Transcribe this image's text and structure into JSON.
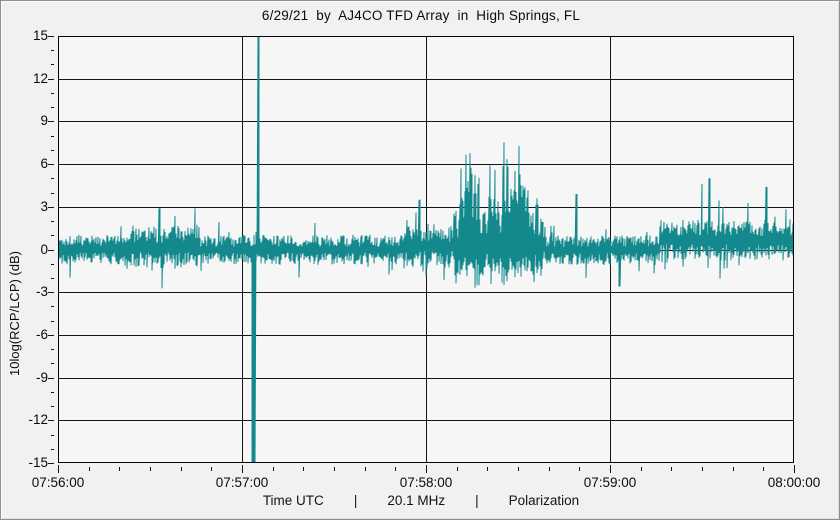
{
  "title": "6/29/21  by  AJ4CO TFD Array  in  High Springs, FL",
  "footer": {
    "time_label": "Time UTC",
    "separator": "|",
    "frequency_label": "20.1 MHz",
    "mode_label": "Polarization"
  },
  "y_axis": {
    "title": "10log(RCP/LCP) (dB)",
    "min": -15,
    "max": 15,
    "major_step": 3,
    "minor_step": 1,
    "tick_labels": [
      "15",
      "12",
      "9",
      "6",
      "3",
      "0",
      "-3",
      "-6",
      "-9",
      "-12",
      "-15"
    ]
  },
  "x_axis": {
    "tick_labels": [
      "07:56:00",
      "07:57:00",
      "07:58:00",
      "07:59:00",
      "08:00:00"
    ],
    "duration_sec": 240,
    "major_step_sec": 60,
    "minor_step_sec": 10
  },
  "colors": {
    "window_bg": "#f1f1f2",
    "plot_bg": "#f6f6f7",
    "grid": "#151515",
    "border": "#050505",
    "trace": "#13898d",
    "text": "#0b0b0b"
  },
  "chart_data": {
    "type": "line",
    "title": "6/29/21 by AJ4CO TFD Array in High Springs, FL",
    "xlabel": "Time UTC",
    "ylabel": "10log(RCP/LCP) (dB)",
    "frequency": "20.1 MHz",
    "quantity": "Polarization",
    "x_range": [
      "07:56:00",
      "08:00:00"
    ],
    "ylim": [
      -15,
      15
    ],
    "grid": true,
    "legend": false,
    "noise_seed": 1337,
    "segment_format": "[t0_sec, t1_sec, mean_dB, amplitude_dB, spike_probability] (t measured in seconds after 07:56:00)",
    "baseline_segments": [
      [
        0,
        20,
        0.0,
        1.05,
        0.05
      ],
      [
        20,
        46,
        0.15,
        1.5,
        0.08
      ],
      [
        46,
        112,
        0.0,
        1.05,
        0.05
      ],
      [
        112,
        128,
        0.2,
        1.6,
        0.1
      ],
      [
        128,
        159,
        0.3,
        1.4,
        0.1
      ],
      [
        159,
        196,
        -0.05,
        1.05,
        0.06
      ],
      [
        196,
        240,
        0.65,
        1.45,
        0.09
      ]
    ],
    "burst_peak_format": "[t_sec, peak_dB, gaussian_width_sec] — solar radio burst ~07:58:09-07:58:38",
    "burst_peaks": [
      [
        129.5,
        3.6,
        0.5
      ],
      [
        131.5,
        5.8,
        0.6
      ],
      [
        133.2,
        7.3,
        0.55
      ],
      [
        134.6,
        7.5,
        0.6
      ],
      [
        135.9,
        6.6,
        0.5
      ],
      [
        137.2,
        5.2,
        0.5
      ],
      [
        139.0,
        3.4,
        0.7
      ],
      [
        141.0,
        6.2,
        0.55
      ],
      [
        142.4,
        6.5,
        0.5
      ],
      [
        143.6,
        4.8,
        0.45
      ],
      [
        145.3,
        9.4,
        0.38
      ],
      [
        146.6,
        6.9,
        0.5
      ],
      [
        147.9,
        6.4,
        0.5
      ],
      [
        149.2,
        7.7,
        0.5
      ],
      [
        150.5,
        8.2,
        0.55
      ],
      [
        151.8,
        7.5,
        0.5
      ],
      [
        153.1,
        5.0,
        0.5
      ],
      [
        154.6,
        3.3,
        0.6
      ],
      [
        156.2,
        4.4,
        0.45
      ],
      [
        157.8,
        2.8,
        0.6
      ]
    ],
    "spike_format": "[t_sec, value_dB, width_sec] — values at ±15 are clipped at plot border (RFI pair just after 07:57:00)",
    "spikes": [
      [
        33.0,
        2.9,
        0.3
      ],
      [
        63.8,
        -15,
        1.1
      ],
      [
        65.3,
        15,
        0.4
      ],
      [
        118.0,
        3.5,
        0.3
      ],
      [
        169.0,
        3.9,
        0.3
      ],
      [
        183.0,
        -2.6,
        0.3
      ],
      [
        210.0,
        4.6,
        0.3
      ],
      [
        212.3,
        5.0,
        0.3
      ],
      [
        231.0,
        4.4,
        0.3
      ]
    ]
  }
}
